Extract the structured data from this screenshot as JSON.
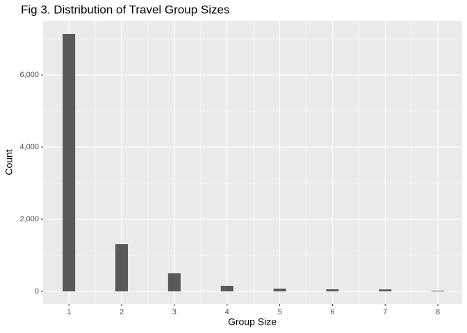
{
  "chart_data": {
    "type": "bar",
    "title": "Fig 3. Distribution of Travel Group Sizes",
    "x_label": "Group Size",
    "y_label": "Count",
    "x": [
      1,
      2,
      3,
      4,
      5,
      6,
      7,
      8
    ],
    "values": [
      7135,
      1308,
      500,
      154,
      77,
      58,
      55,
      19
    ],
    "color": "#595959",
    "xlim": [
      0.51,
      8.46
    ],
    "xticks": [
      1,
      2,
      3,
      4,
      5,
      6,
      7,
      8
    ],
    "ylim": [
      -346,
      7500
    ],
    "yticks": [
      0,
      {
        "value": 2000,
        "label": "2,000"
      },
      {
        "value": 4000,
        "label": "4,000"
      },
      {
        "value": 6000,
        "label": "6,000"
      }
    ],
    "grid": true
  }
}
